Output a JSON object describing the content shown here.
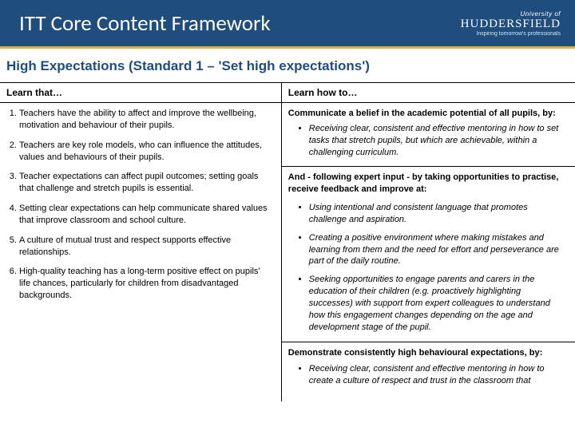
{
  "header": {
    "title": "ITT Core Content Framework",
    "logo_top": "University of",
    "logo_main": "HUDDERSFIELD",
    "logo_tag": "Inspiring tomorrow's professionals"
  },
  "section_title": "High Expectations (Standard 1 – 'Set high expectations')",
  "columns": {
    "left_header": "Learn that…",
    "right_header": "Learn how to…"
  },
  "learn_that": [
    "Teachers have the ability to affect and improve the wellbeing, motivation and behaviour of their pupils.",
    "Teachers are key role models, who can influence the attitudes, values and behaviours of their pupils.",
    "Teacher expectations can affect pupil outcomes; setting goals that challenge and stretch pupils is essential.",
    "Setting clear expectations can help communicate shared values that improve classroom and school culture.",
    "A culture of mutual trust and respect supports effective relationships.",
    "High-quality teaching has a long-term positive effect on pupils' life chances, particularly for children from disadvantaged backgrounds."
  ],
  "rhs": {
    "lead1": "Communicate a belief in the academic potential of all pupils, by:",
    "bullets1": [
      "Receiving clear, consistent and effective mentoring in how to set tasks that stretch pupils, but which are achievable, within a challenging curriculum."
    ],
    "mid": "And - following expert input - by taking opportunities to practise, receive feedback and improve at:",
    "bullets2": [
      "Using intentional and consistent language that promotes challenge and aspiration.",
      "Creating a positive environment where making mistakes and learning from them and the need for effort and perseverance are part of the daily routine.",
      "Seeking opportunities to engage parents and carers in the education of their children (e.g. proactively highlighting successes) with support from expert colleagues to understand how this engagement changes depending on the age and development stage of the pupil."
    ],
    "lead2": "Demonstrate consistently high behavioural expectations, by:",
    "bullets3": [
      "Receiving clear, consistent and effective mentoring in how to create a culture of respect and trust in the classroom that"
    ]
  },
  "colors": {
    "header_bg": "#1e4d7e",
    "accent": "#d8b23f",
    "title_text": "#1e4d7e"
  }
}
